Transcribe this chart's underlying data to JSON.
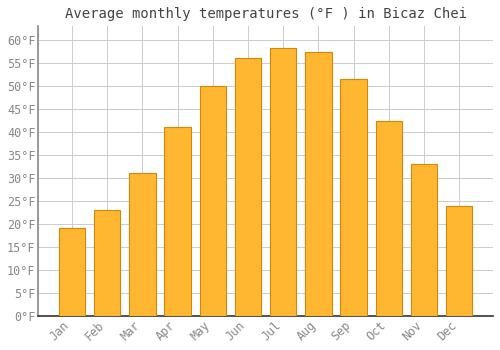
{
  "title": "Average monthly temperatures (°F ) in Bicaz Chei",
  "months": [
    "Jan",
    "Feb",
    "Mar",
    "Apr",
    "May",
    "Jun",
    "Jul",
    "Aug",
    "Sep",
    "Oct",
    "Nov",
    "Dec"
  ],
  "values": [
    19.2,
    23.0,
    31.0,
    41.0,
    50.0,
    56.0,
    58.3,
    57.5,
    51.5,
    42.3,
    33.0,
    24.0
  ],
  "bar_color": "#FFA500",
  "bar_edge_color": "#E08800",
  "background_color": "#FFFFFF",
  "plot_bg_color": "#FFFFFF",
  "grid_color": "#CCCCCC",
  "ylim": [
    0,
    63
  ],
  "yticks": [
    0,
    5,
    10,
    15,
    20,
    25,
    30,
    35,
    40,
    45,
    50,
    55,
    60
  ],
  "title_fontsize": 10,
  "tick_fontsize": 8.5,
  "title_color": "#444444",
  "tick_color": "#888888",
  "bar_width": 0.75
}
